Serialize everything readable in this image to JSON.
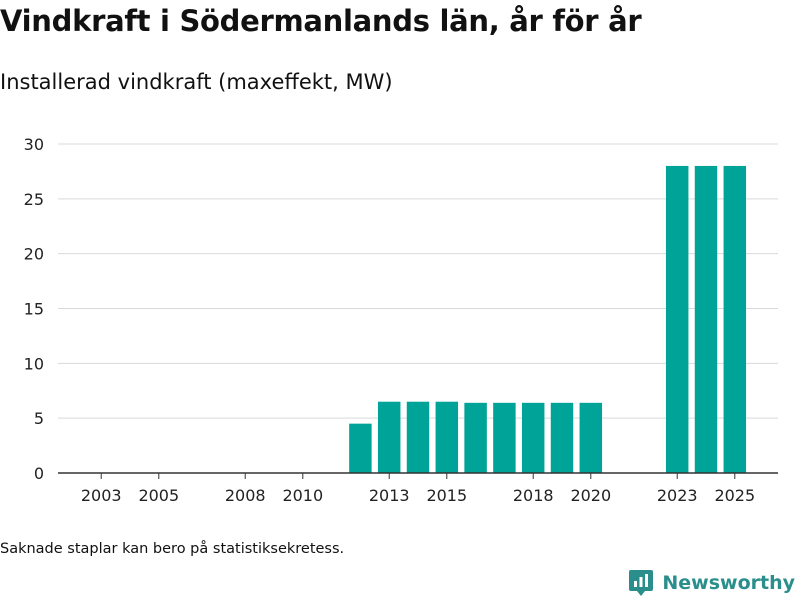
{
  "title": "Vindkraft i Södermanlands län, år för år",
  "subtitle": "Installerad vindkraft (maxeffekt, MW)",
  "footnote": "Saknade staplar kan bero på statistiksekretess.",
  "brand": {
    "name": "Newsworthy",
    "color": "#2a8f8c"
  },
  "chart_data": {
    "type": "bar",
    "title": "Vindkraft i Södermanlands län, år för år",
    "ylabel": "Installerad vindkraft (maxeffekt, MW)",
    "xlabel": "",
    "bar_color": "#00a398",
    "ylim": [
      0,
      30
    ],
    "yticks": [
      0,
      5,
      10,
      15,
      20,
      25,
      30
    ],
    "xlim": [
      2001.5,
      2026.5
    ],
    "xticks": [
      2003,
      2005,
      2008,
      2010,
      2013,
      2015,
      2018,
      2020,
      2023,
      2025
    ],
    "grid": true,
    "categories": [
      2012,
      2013,
      2014,
      2015,
      2016,
      2017,
      2018,
      2019,
      2020,
      2023,
      2024,
      2025
    ],
    "values": [
      4.5,
      6.5,
      6.5,
      6.5,
      6.4,
      6.4,
      6.4,
      6.4,
      6.4,
      28,
      28,
      28
    ]
  }
}
